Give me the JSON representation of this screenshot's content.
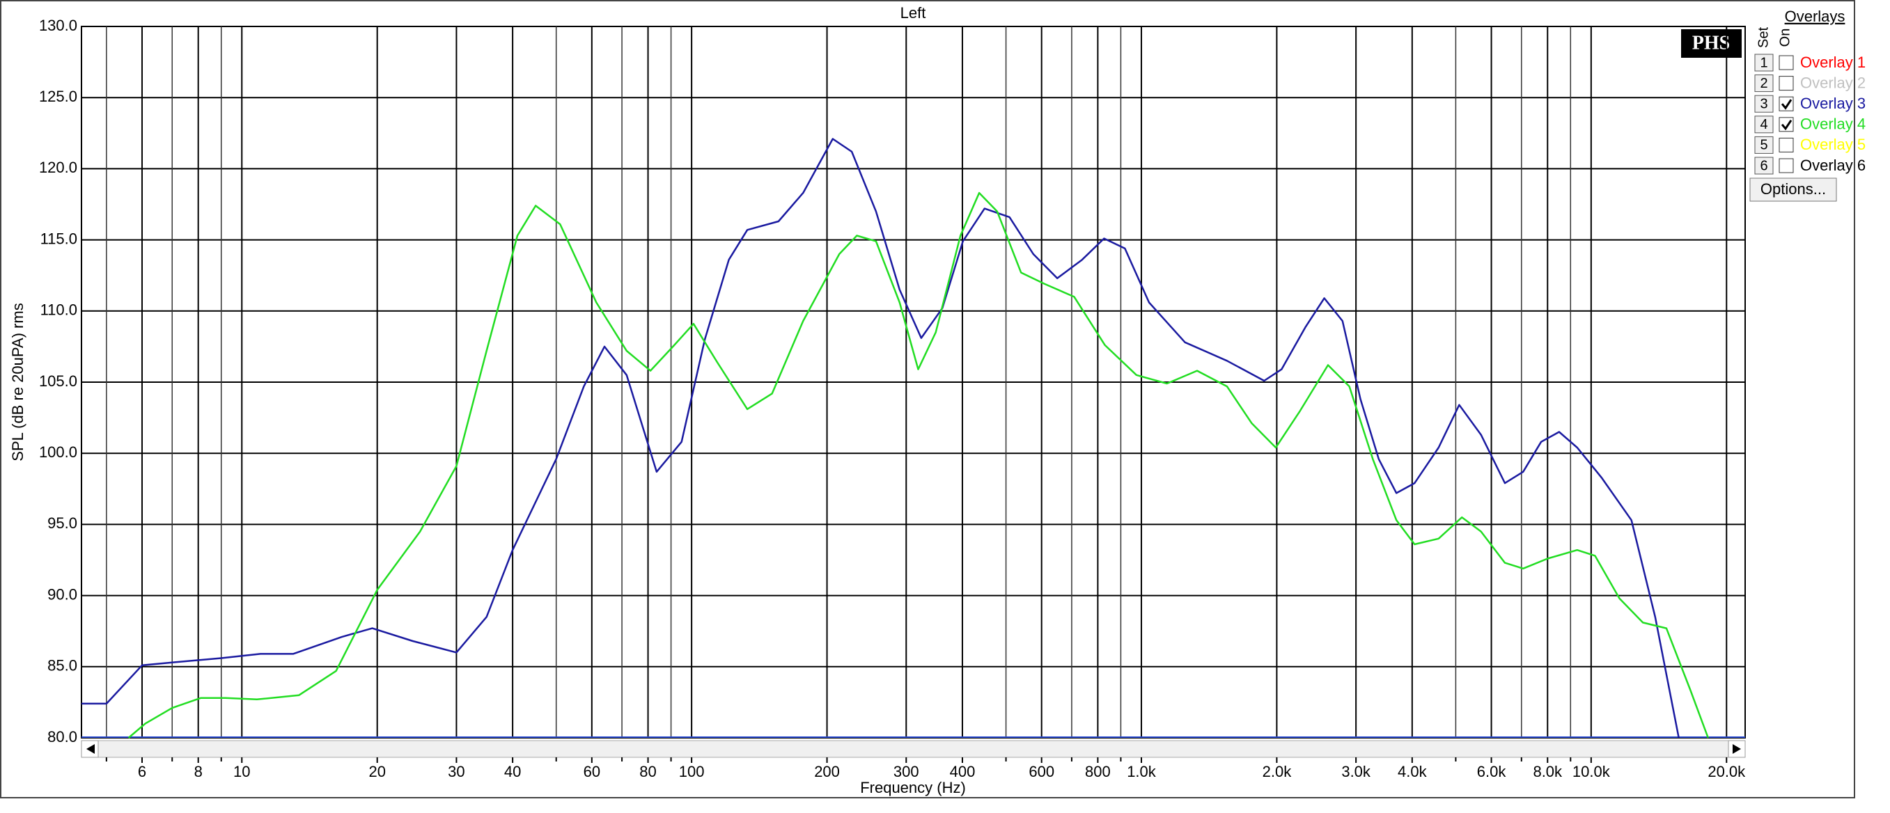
{
  "chart_data": {
    "type": "line",
    "title": "Left",
    "x_label": "Frequency (Hz)",
    "y_label": "SPL (dB re 20uPA) rms",
    "x_scale": "log",
    "grid": true,
    "xlim": [
      4.4,
      22000
    ],
    "ylim": [
      80,
      130
    ],
    "xticks": [
      6,
      8,
      10,
      20,
      30,
      40,
      60,
      80,
      100,
      200,
      300,
      400,
      600,
      800,
      {
        "value": 1000,
        "label": "1.0k"
      },
      {
        "value": 2000,
        "label": "2.0k"
      },
      {
        "value": 3000,
        "label": "3.0k"
      },
      {
        "value": 4000,
        "label": "4.0k"
      },
      {
        "value": 6000,
        "label": "6.0k"
      },
      {
        "value": 8000,
        "label": "8.0k"
      },
      {
        "value": 10000,
        "label": "10.0k"
      },
      {
        "value": 20000,
        "label": "20.0k"
      }
    ],
    "xminor_ticks": [
      5,
      7,
      9,
      50,
      70,
      90,
      500,
      700,
      900,
      5000,
      7000,
      9000
    ],
    "yticks": [
      {
        "value": 80,
        "label": "80.0"
      },
      {
        "value": 85,
        "label": "85.0"
      },
      {
        "value": 90,
        "label": "90.0"
      },
      {
        "value": 95,
        "label": "95.0"
      },
      {
        "value": 100,
        "label": "100.0"
      },
      {
        "value": 105,
        "label": "105.0"
      },
      {
        "value": 110,
        "label": "110.0"
      },
      {
        "value": 115,
        "label": "115.0"
      },
      {
        "value": 120,
        "label": "120.0"
      },
      {
        "value": 125,
        "label": "125.0"
      },
      {
        "value": 130,
        "label": "130.0"
      }
    ],
    "legend_title": "Overlays",
    "legend_set_label": "Set",
    "legend_on_label": "On",
    "options_button": "Options...",
    "logo": "PHS",
    "series": [
      {
        "set": 1,
        "name": "Overlay 1",
        "color": "#ff0000",
        "on": false,
        "x": [],
        "values": []
      },
      {
        "set": 2,
        "name": "Overlay 2",
        "color": "#c0c0c0",
        "on": false,
        "x": [],
        "values": []
      },
      {
        "set": 3,
        "name": "Overlay 3",
        "color": "#1a1aa0",
        "on": true,
        "x": [
          4.4,
          5,
          6,
          7,
          9,
          11,
          13,
          16.7,
          19.5,
          24,
          30,
          35,
          40,
          50,
          57.6,
          64,
          71.7,
          83.6,
          95,
          107,
          121,
          133,
          156,
          177,
          206,
          227,
          257,
          290,
          324,
          361,
          401,
          448,
          509,
          575,
          650,
          738,
          826,
          919,
          1040,
          1250,
          1550,
          1875,
          2050,
          2320,
          2550,
          2800,
          3070,
          3370,
          3690,
          4050,
          4580,
          5090,
          5690,
          6430,
          7060,
          7740,
          8490,
          9310,
          10540,
          12290,
          13880,
          15660
        ],
        "values": [
          82.4,
          82.4,
          85.1,
          85.3,
          85.6,
          85.9,
          85.9,
          87.1,
          87.7,
          86.8,
          86.0,
          88.5,
          93.2,
          99.6,
          104.7,
          107.5,
          105.5,
          98.7,
          100.8,
          108.0,
          113.6,
          115.7,
          116.3,
          118.3,
          122.1,
          121.2,
          117.0,
          111.5,
          108.1,
          110.2,
          114.9,
          117.2,
          116.6,
          114.0,
          112.3,
          113.6,
          115.1,
          114.4,
          110.6,
          107.8,
          106.5,
          105.1,
          105.9,
          108.9,
          110.9,
          109.3,
          103.8,
          99.6,
          97.2,
          97.9,
          100.4,
          103.4,
          101.3,
          97.9,
          98.7,
          100.8,
          101.5,
          100.4,
          98.3,
          95.3,
          88.5,
          80.0
        ]
      },
      {
        "set": 4,
        "name": "Overlay 4",
        "color": "#22dd22",
        "on": true,
        "x": [
          5.6,
          6.1,
          7,
          8.1,
          9.2,
          10.8,
          13.4,
          16.2,
          20,
          24.9,
          30,
          35,
          41,
          45,
          51,
          61.4,
          71.7,
          81,
          91.5,
          101,
          114,
          133,
          151,
          177,
          213,
          233,
          257,
          290,
          319,
          349,
          396,
          436,
          478,
          540,
          610,
          709,
          830,
          975,
          1140,
          1330,
          1550,
          1760,
          1990,
          2255,
          2600,
          2900,
          3270,
          3690,
          4050,
          4580,
          5160,
          5690,
          6430,
          7060,
          8000,
          9310,
          10200,
          11560,
          13030,
          14700,
          16600,
          18200
        ],
        "values": [
          80.0,
          81.0,
          82.1,
          82.8,
          82.8,
          82.7,
          83.0,
          84.7,
          90.4,
          94.5,
          99.1,
          107.2,
          115.3,
          117.4,
          116.1,
          110.6,
          107.2,
          105.8,
          107.6,
          109.1,
          106.4,
          103.1,
          104.2,
          109.3,
          114.0,
          115.3,
          114.9,
          110.6,
          105.9,
          108.5,
          115.3,
          118.3,
          117.0,
          112.7,
          111.9,
          111.0,
          107.6,
          105.5,
          104.9,
          105.8,
          104.7,
          102.1,
          100.4,
          103.0,
          106.2,
          104.7,
          99.6,
          95.3,
          93.6,
          94.0,
          95.5,
          94.5,
          92.3,
          91.9,
          92.6,
          93.2,
          92.8,
          89.8,
          88.1,
          87.7,
          83.4,
          80.0
        ]
      },
      {
        "set": 5,
        "name": "Overlay 5",
        "color": "#ffff00",
        "on": false,
        "x": [],
        "values": []
      },
      {
        "set": 6,
        "name": "Overlay 6",
        "color": "#000000",
        "on": false,
        "x": [],
        "values": []
      }
    ]
  }
}
